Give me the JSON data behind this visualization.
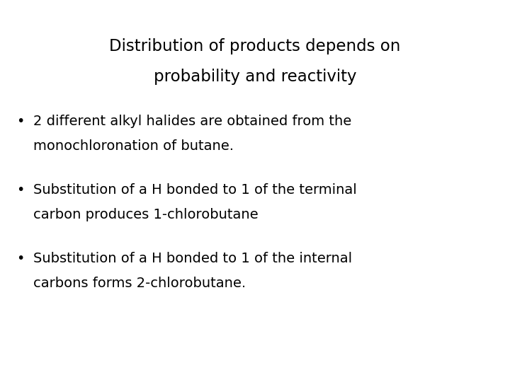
{
  "title_line1": "Distribution of products depends on",
  "title_line2": "probability and reactivity",
  "bullets": [
    {
      "line1": "2 different alkyl halides are obtained from the",
      "line2": "monochloronation of butane."
    },
    {
      "line1": "Substitution of a H bonded to 1 of the terminal",
      "line2": "carbon produces 1-chlorobutane"
    },
    {
      "line1": "Substitution of a H bonded to 1 of the internal",
      "line2": "carbons forms 2-chlorobutane."
    }
  ],
  "background_color": "#ffffff",
  "text_color": "#000000",
  "title_fontsize": 16.5,
  "bullet_fontsize": 14,
  "figwidth": 7.2,
  "figheight": 5.4,
  "dpi": 100
}
